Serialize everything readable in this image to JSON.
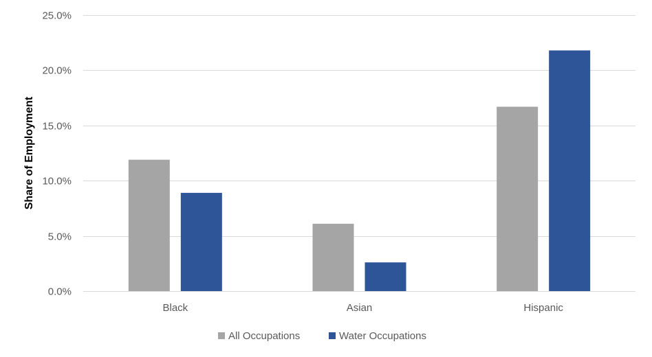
{
  "chart_data": {
    "type": "bar",
    "categories": [
      "Black",
      "Asian",
      "Hispanic"
    ],
    "series": [
      {
        "name": "All Occupations",
        "values": [
          11.9,
          6.1,
          16.7
        ],
        "color": "#a5a5a5"
      },
      {
        "name": "Water Occupations",
        "values": [
          8.9,
          2.6,
          21.8
        ],
        "color": "#2e5597"
      }
    ],
    "ylabel": "Share of Employment",
    "ylim": [
      0,
      25
    ],
    "yticks": [
      0,
      5,
      10,
      15,
      20,
      25
    ],
    "ytick_labels": [
      "0.0%",
      "5.0%",
      "10.0%",
      "15.0%",
      "20.0%",
      "25.0%"
    ],
    "grid": true,
    "legend_position": "bottom"
  }
}
